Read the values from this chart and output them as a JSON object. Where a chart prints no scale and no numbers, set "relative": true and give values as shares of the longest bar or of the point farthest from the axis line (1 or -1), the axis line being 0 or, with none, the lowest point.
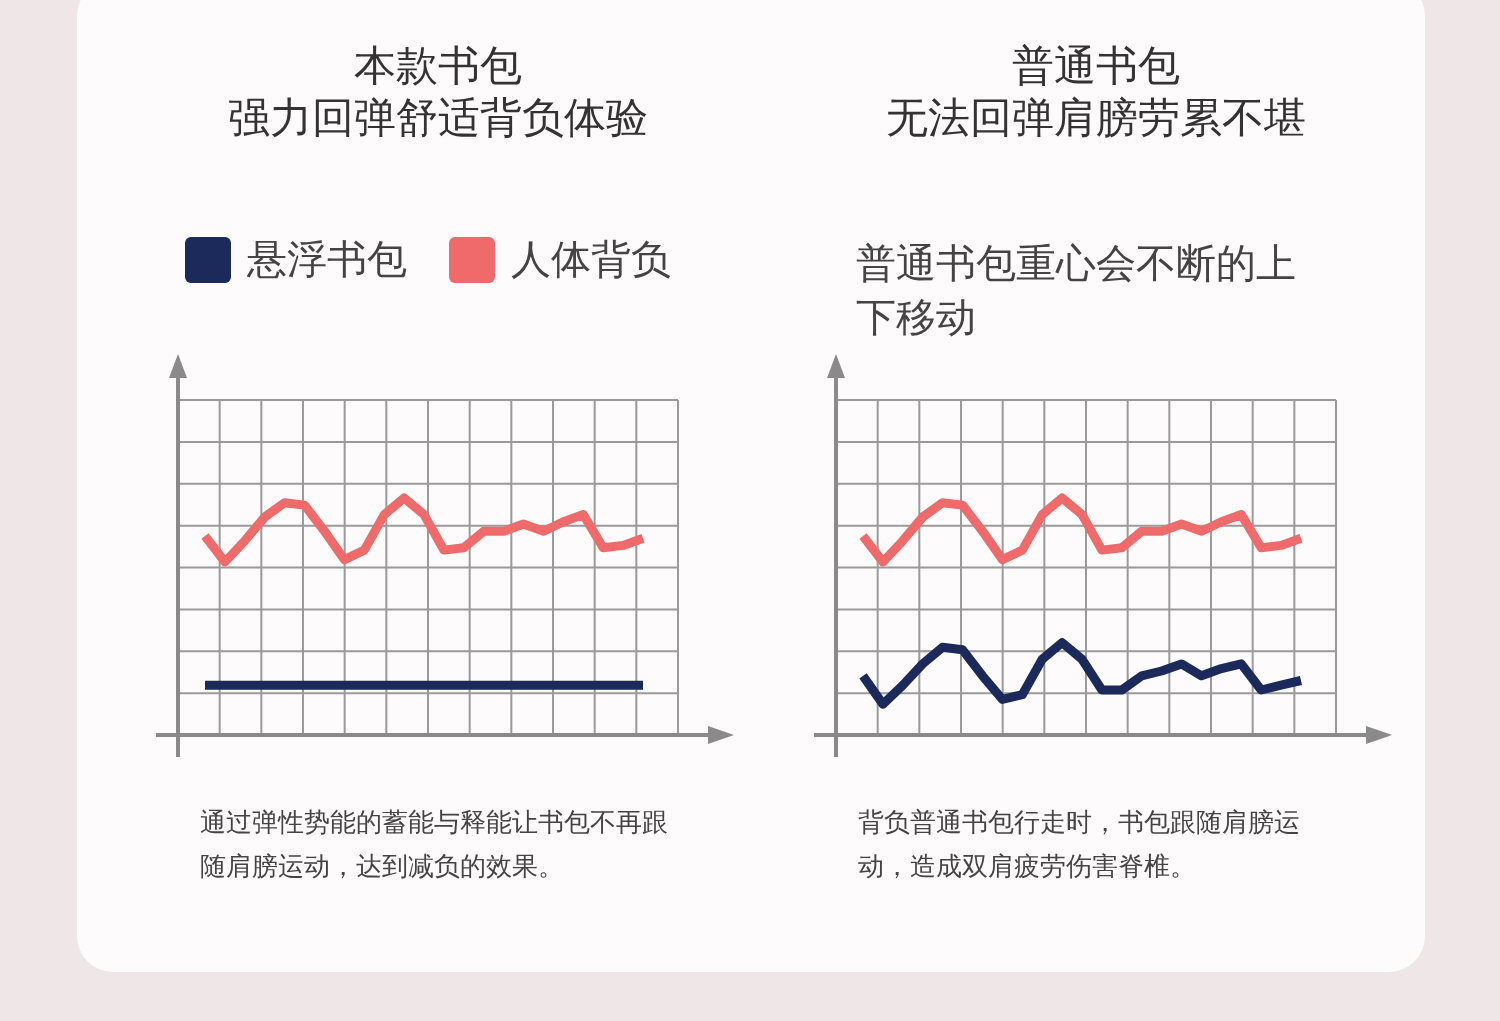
{
  "chart_data": [
    {
      "type": "line",
      "title": "本款书包",
      "subtitle": "强力回弹舒适背负体验",
      "relative": true,
      "grid": true,
      "legend": "top",
      "categories": [
        null,
        null,
        null,
        null,
        null,
        null,
        null,
        null,
        null,
        null,
        null,
        null,
        null,
        null,
        null,
        null,
        null,
        null,
        null,
        null,
        null,
        null,
        null
      ],
      "series": [
        {
          "name": "悬浮书包",
          "color": "#1b2a5a",
          "values": [
            0.21,
            0.21,
            0.21,
            0.21,
            0.21,
            0.21,
            0.21,
            0.21,
            0.21,
            0.21,
            0.21,
            0.21,
            0.21,
            0.21,
            0.21,
            0.21,
            0.21,
            0.21,
            0.21,
            0.21,
            0.21,
            0.21,
            0.21
          ]
        },
        {
          "name": "人体背负",
          "color": "#ef6b6b",
          "values": [
            0.84,
            0.73,
            0.82,
            0.92,
            0.98,
            0.97,
            0.86,
            0.74,
            0.78,
            0.93,
            1,
            0.93,
            0.78,
            0.79,
            0.86,
            0.86,
            0.89,
            0.86,
            0.9,
            0.93,
            0.79,
            0.8,
            0.83
          ]
        }
      ],
      "annotations": [
        "通过弹性势能的蓄能与释能让书包不再跟随肩膀运动，达到减负的效果。"
      ]
    },
    {
      "type": "line",
      "title": "普通书包",
      "subtitle": "无法回弹肩膀劳累不堪",
      "relative": true,
      "grid": true,
      "categories": [
        null,
        null,
        null,
        null,
        null,
        null,
        null,
        null,
        null,
        null,
        null,
        null,
        null,
        null,
        null,
        null,
        null,
        null,
        null,
        null,
        null,
        null,
        null
      ],
      "series": [
        {
          "color": "#ef6b6b",
          "values": [
            0.84,
            0.73,
            0.82,
            0.92,
            0.98,
            0.97,
            0.86,
            0.74,
            0.78,
            0.93,
            1,
            0.93,
            0.78,
            0.79,
            0.86,
            0.86,
            0.89,
            0.86,
            0.9,
            0.93,
            0.79,
            0.8,
            0.83
          ]
        },
        {
          "color": "#1b2a5a",
          "values": [
            0.25,
            0.13,
            0.21,
            0.3,
            0.37,
            0.36,
            0.25,
            0.15,
            0.17,
            0.32,
            0.39,
            0.32,
            0.19,
            0.19,
            0.25,
            0.27,
            0.3,
            0.25,
            0.28,
            0.3,
            0.19,
            0.21,
            0.23
          ]
        }
      ],
      "annotations": [
        "普通书包重心会不断的上下移动",
        "背负普通书包行走时，书包跟随肩膀运动，造成双肩疲劳伤害脊椎。"
      ]
    }
  ]
}
